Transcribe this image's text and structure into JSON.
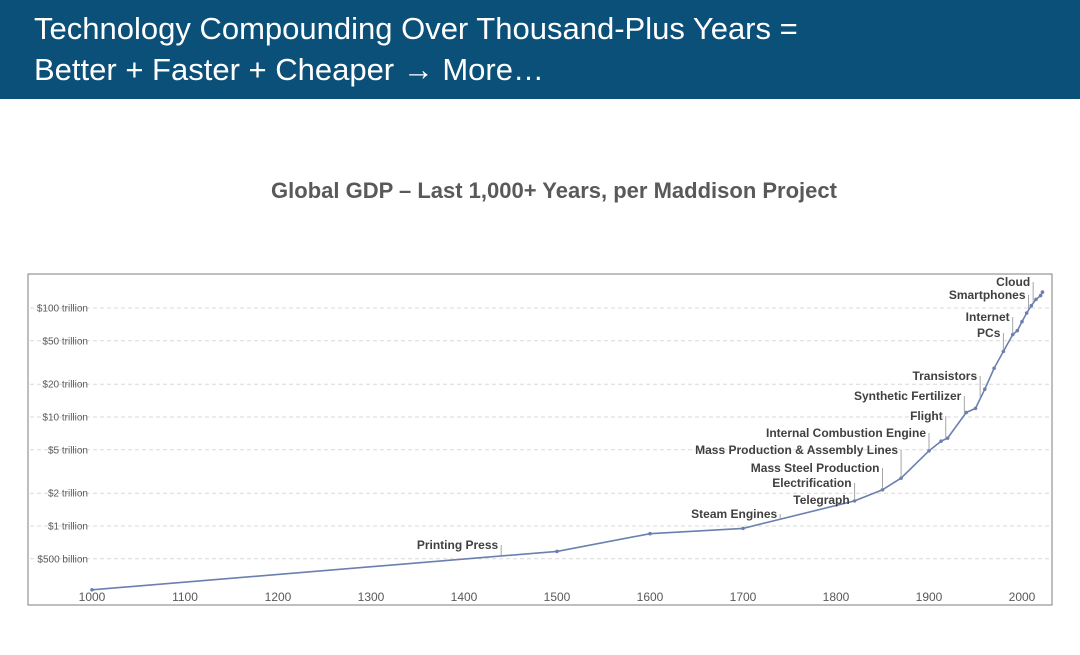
{
  "header": {
    "title_line1": "Technology Compounding Over Thousand-Plus Years =",
    "title_line2": "Better + Faster + Cheaper → More…",
    "background": "#0b5079"
  },
  "chart_data": {
    "type": "line",
    "title": "Global GDP – Last 1,000+ Years, per Maddison Project",
    "xlabel": "",
    "ylabel": "",
    "y_scale": "log",
    "xlim": [
      1000,
      2025
    ],
    "ylim_billions": [
      250,
      180000
    ],
    "x_ticks": [
      1000,
      1100,
      1200,
      1300,
      1400,
      1500,
      1600,
      1700,
      1800,
      1900,
      2000
    ],
    "y_ticks": [
      {
        "value": 500,
        "label": "$500 billion"
      },
      {
        "value": 1000,
        "label": "$1 trillion"
      },
      {
        "value": 2000,
        "label": "$2 trillion"
      },
      {
        "value": 5000,
        "label": "$5 trillion"
      },
      {
        "value": 10000,
        "label": "$10 trillion"
      },
      {
        "value": 20000,
        "label": "$20 trillion"
      },
      {
        "value": 50000,
        "label": "$50 trillion"
      },
      {
        "value": 100000,
        "label": "$100 trillion"
      }
    ],
    "grid": "horizontal dashed",
    "line_color": "#6b7fb0",
    "series": [
      {
        "unit": "billions",
        "points": [
          [
            1000,
            260
          ],
          [
            1500,
            585
          ],
          [
            1600,
            850
          ],
          [
            1700,
            950
          ],
          [
            1820,
            1700
          ],
          [
            1850,
            2150
          ],
          [
            1870,
            2750
          ],
          [
            1900,
            4900
          ],
          [
            1913,
            6000
          ],
          [
            1920,
            6400
          ],
          [
            1940,
            11000
          ],
          [
            1950,
            12000
          ],
          [
            1960,
            18000
          ],
          [
            1970,
            28000
          ],
          [
            1980,
            40000
          ],
          [
            1990,
            57000
          ],
          [
            1995,
            62000
          ],
          [
            2000,
            75000
          ],
          [
            2005,
            90000
          ],
          [
            2010,
            105000
          ],
          [
            2015,
            120000
          ],
          [
            2020,
            130000
          ],
          [
            2022,
            140000
          ]
        ]
      }
    ],
    "annotations": [
      {
        "label": "Printing Press",
        "year": 1440
      },
      {
        "label": "Steam Engines",
        "year": 1740
      },
      {
        "label": "Telegraph",
        "year": 1818
      },
      {
        "label": "Electrification",
        "year": 1820
      },
      {
        "label": "Mass Steel Production",
        "year": 1850
      },
      {
        "label": "Mass Production & Assembly Lines",
        "year": 1870
      },
      {
        "label": "Internal Combustion Engine",
        "year": 1900
      },
      {
        "label": "Flight",
        "year": 1918
      },
      {
        "label": "Synthetic Fertilizer",
        "year": 1938
      },
      {
        "label": "Transistors",
        "year": 1955
      },
      {
        "label": "PCs",
        "year": 1980
      },
      {
        "label": "Internet",
        "year": 1990
      },
      {
        "label": "Smartphones",
        "year": 2007
      },
      {
        "label": "Cloud",
        "year": 2012
      }
    ]
  }
}
